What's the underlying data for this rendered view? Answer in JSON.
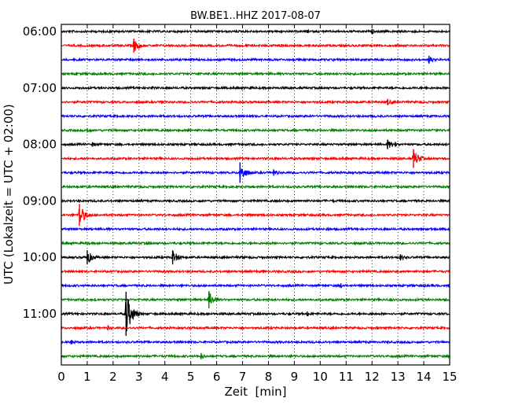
{
  "chart_data": {
    "type": "line",
    "title": "BW.BE1..HHZ 2017-08-07",
    "xlabel": "Zeit  [min]",
    "ylabel": "UTC (Lokalzeit = UTC + 02:00)",
    "xlim": [
      0,
      15
    ],
    "x_ticks": [
      0,
      1,
      2,
      3,
      4,
      5,
      6,
      7,
      8,
      9,
      10,
      11,
      12,
      13,
      14,
      15
    ],
    "x_tick_labels": [
      "0",
      "1",
      "2",
      "3",
      "4",
      "5",
      "6",
      "7",
      "8",
      "9",
      "10",
      "11",
      "12",
      "13",
      "14",
      "15"
    ],
    "y_tick_labels": [
      "06:00",
      "07:00",
      "08:00",
      "09:00",
      "10:00",
      "11:00"
    ],
    "grid": {
      "vertical_dotted": true
    },
    "trace_interval_minutes": 15,
    "trace_colors": [
      "#000000",
      "#ff0000",
      "#0000ff",
      "#008000"
    ],
    "traces": [
      {
        "start": "06:00",
        "events": [
          [
            9.5,
            2
          ],
          [
            12.0,
            3
          ]
        ]
      },
      {
        "start": "06:15",
        "events": [
          [
            2.8,
            9
          ],
          [
            8.5,
            2
          ]
        ]
      },
      {
        "start": "06:30",
        "events": [
          [
            5.0,
            2
          ],
          [
            14.2,
            5
          ]
        ]
      },
      {
        "start": "06:45",
        "events": [
          [
            0.6,
            2
          ],
          [
            5.3,
            2
          ]
        ]
      },
      {
        "start": "07:00",
        "events": [
          [
            3.5,
            2
          ],
          [
            7.3,
            2
          ],
          [
            14.1,
            2
          ]
        ]
      },
      {
        "start": "07:15",
        "events": [
          [
            3.9,
            2
          ],
          [
            12.6,
            4
          ]
        ]
      },
      {
        "start": "07:30",
        "events": [
          [
            12.0,
            2
          ]
        ]
      },
      {
        "start": "07:45",
        "events": [
          [
            1.0,
            3
          ],
          [
            4.9,
            2
          ],
          [
            14.5,
            2
          ]
        ]
      },
      {
        "start": "08:00",
        "events": [
          [
            1.2,
            3
          ],
          [
            7.0,
            2
          ],
          [
            12.6,
            6
          ],
          [
            12.9,
            3
          ]
        ]
      },
      {
        "start": "08:15",
        "events": [
          [
            13.6,
            12
          ],
          [
            6.0,
            1.5
          ]
        ]
      },
      {
        "start": "08:30",
        "events": [
          [
            6.9,
            13
          ],
          [
            8.2,
            4
          ],
          [
            14.7,
            2
          ]
        ]
      },
      {
        "start": "08:45",
        "events": [
          [
            7.4,
            1.5
          ]
        ]
      },
      {
        "start": "09:00",
        "events": [
          [
            10.5,
            2
          ]
        ]
      },
      {
        "start": "09:15",
        "events": [
          [
            0.7,
            14
          ],
          [
            7.2,
            2
          ]
        ]
      },
      {
        "start": "09:30",
        "events": [
          [
            10.3,
            2
          ],
          [
            14.3,
            2
          ]
        ]
      },
      {
        "start": "09:45",
        "events": [
          [
            1.0,
            1.5
          ],
          [
            3.3,
            2
          ]
        ]
      },
      {
        "start": "10:00",
        "events": [
          [
            1.0,
            9
          ],
          [
            4.3,
            9
          ],
          [
            13.1,
            4
          ],
          [
            7.0,
            2
          ]
        ]
      },
      {
        "start": "10:15",
        "events": [
          [
            7.8,
            2
          ],
          [
            14.0,
            2
          ]
        ]
      },
      {
        "start": "10:30",
        "events": [
          [
            10.8,
            3
          ],
          [
            14.0,
            2
          ]
        ]
      },
      {
        "start": "10:45",
        "events": [
          [
            1.3,
            2
          ],
          [
            5.7,
            11
          ],
          [
            12.7,
            2
          ]
        ]
      },
      {
        "start": "11:00",
        "events": [
          [
            2.5,
            28
          ],
          [
            9.5,
            3
          ],
          [
            12.0,
            2
          ]
        ]
      },
      {
        "start": "11:15",
        "events": [
          [
            1.8,
            3
          ],
          [
            12.2,
            2
          ]
        ]
      },
      {
        "start": "11:30",
        "events": [
          [
            0.4,
            3
          ]
        ]
      },
      {
        "start": "11:45",
        "events": [
          [
            5.4,
            4
          ]
        ]
      }
    ]
  }
}
